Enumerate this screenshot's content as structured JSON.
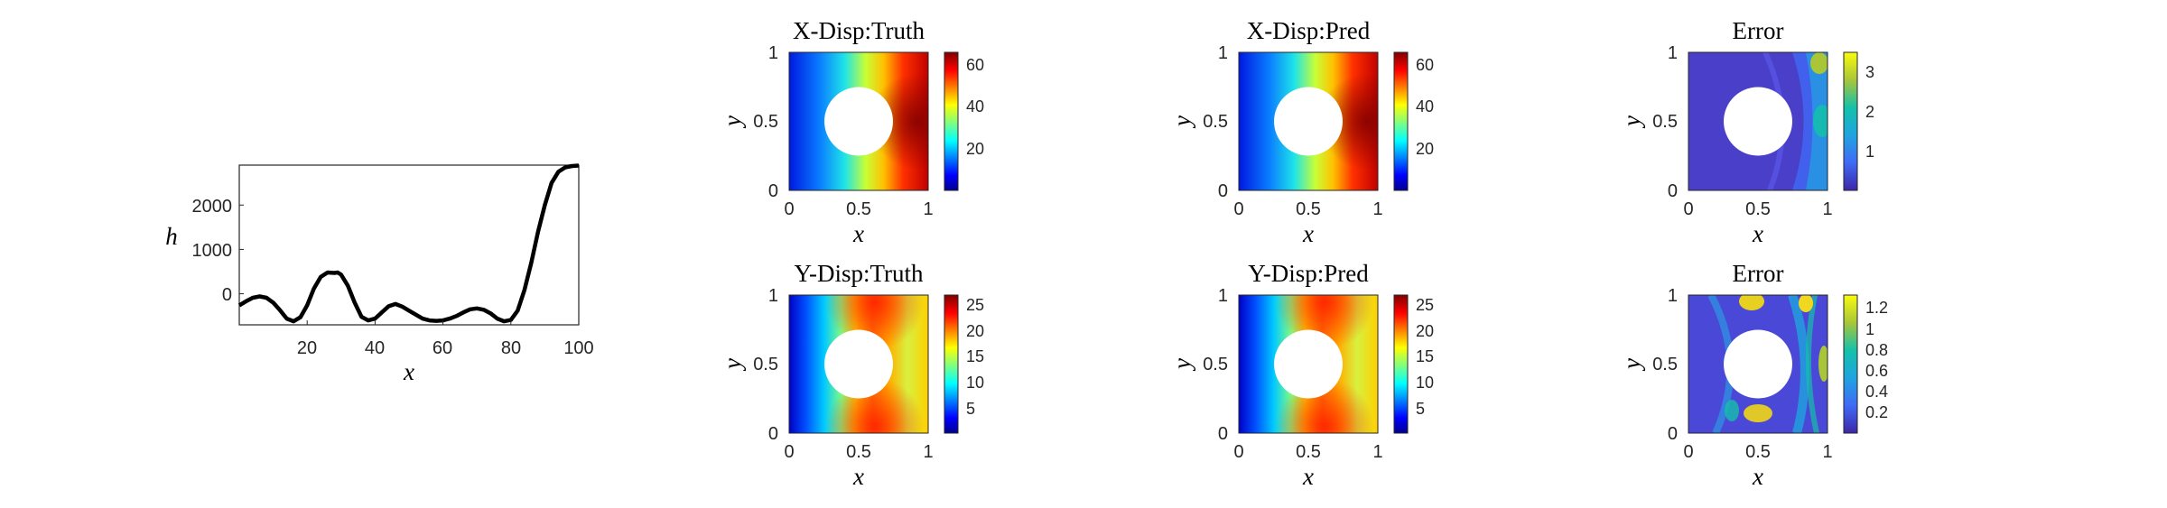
{
  "chart_data": [
    {
      "type": "line",
      "title": "",
      "xlabel": "x",
      "ylabel": "h",
      "xlim": [
        0,
        100
      ],
      "ylim": [
        -700,
        2900
      ],
      "xticks": [
        "20",
        "40",
        "60",
        "80",
        "100"
      ],
      "yticks": [
        "0",
        "1000",
        "2000"
      ],
      "series": [
        {
          "color": "#000000",
          "x": [
            0,
            2,
            4,
            6,
            8,
            10,
            12,
            14,
            16,
            18,
            20,
            22,
            24,
            26,
            28,
            29,
            30,
            32,
            34,
            36,
            38,
            40,
            42,
            44,
            46,
            48,
            50,
            52,
            54,
            56,
            58,
            60,
            62,
            64,
            66,
            68,
            70,
            72,
            74,
            76,
            78,
            80,
            82,
            84,
            86,
            88,
            90,
            92,
            94,
            96,
            98,
            100
          ],
          "y": [
            -260,
            -170,
            -90,
            -60,
            -90,
            -200,
            -370,
            -560,
            -620,
            -530,
            -260,
            120,
            380,
            480,
            470,
            480,
            430,
            180,
            -200,
            -520,
            -600,
            -560,
            -420,
            -280,
            -230,
            -290,
            -380,
            -470,
            -560,
            -600,
            -610,
            -600,
            -560,
            -500,
            -420,
            -350,
            -330,
            -360,
            -440,
            -560,
            -620,
            -590,
            -380,
            80,
            700,
            1400,
            2000,
            2500,
            2750,
            2850,
            2880,
            2890
          ]
        }
      ]
    },
    {
      "type": "heatmap",
      "title": "X-Disp:Truth",
      "xlabel": "x",
      "ylabel": "y",
      "xlim": [
        0,
        1
      ],
      "ylim": [
        0,
        1
      ],
      "xticks": [
        "0",
        "0.5",
        "1"
      ],
      "yticks": [
        "0",
        "0.5",
        "1"
      ],
      "colormap": "jet",
      "colorbar_range": [
        0,
        66
      ],
      "colorbar_ticks": [
        "20",
        "40",
        "60"
      ]
    },
    {
      "type": "heatmap",
      "title": "X-Disp:Pred",
      "xlabel": "x",
      "ylabel": "y",
      "xlim": [
        0,
        1
      ],
      "ylim": [
        0,
        1
      ],
      "xticks": [
        "0",
        "0.5",
        "1"
      ],
      "yticks": [
        "0",
        "0.5",
        "1"
      ],
      "colormap": "jet",
      "colorbar_range": [
        0,
        66
      ],
      "colorbar_ticks": [
        "20",
        "40",
        "60"
      ]
    },
    {
      "type": "heatmap",
      "title": "Error",
      "xlabel": "x",
      "ylabel": "y",
      "xlim": [
        0,
        1
      ],
      "ylim": [
        0,
        1
      ],
      "xticks": [
        "0",
        "0.5",
        "1"
      ],
      "yticks": [
        "0",
        "0.5",
        "1"
      ],
      "colormap": "parula",
      "colorbar_range": [
        0,
        3.5
      ],
      "colorbar_ticks": [
        "1",
        "2",
        "3"
      ]
    },
    {
      "type": "heatmap",
      "title": "Y-Disp:Truth",
      "xlabel": "x",
      "ylabel": "y",
      "xlim": [
        0,
        1
      ],
      "ylim": [
        0,
        1
      ],
      "xticks": [
        "0",
        "0.5",
        "1"
      ],
      "yticks": [
        "0",
        "0.5",
        "1"
      ],
      "colormap": "jet",
      "colorbar_range": [
        0,
        27
      ],
      "colorbar_ticks": [
        "5",
        "10",
        "15",
        "20",
        "25"
      ]
    },
    {
      "type": "heatmap",
      "title": "Y-Disp:Pred",
      "xlabel": "x",
      "ylabel": "y",
      "xlim": [
        0,
        1
      ],
      "ylim": [
        0,
        1
      ],
      "xticks": [
        "0",
        "0.5",
        "1"
      ],
      "yticks": [
        "0",
        "0.5",
        "1"
      ],
      "colormap": "jet",
      "colorbar_range": [
        0,
        27
      ],
      "colorbar_ticks": [
        "5",
        "10",
        "15",
        "20",
        "25"
      ]
    },
    {
      "type": "heatmap",
      "title": "Error",
      "xlabel": "x",
      "ylabel": "y",
      "xlim": [
        0,
        1
      ],
      "ylim": [
        0,
        1
      ],
      "xticks": [
        "0",
        "0.5",
        "1"
      ],
      "yticks": [
        "0",
        "0.5",
        "1"
      ],
      "colormap": "parula",
      "colorbar_range": [
        0,
        1.3
      ],
      "colorbar_ticks": [
        "0.2",
        "0.4",
        "0.6",
        "0.8",
        "1",
        "1.2"
      ]
    }
  ]
}
